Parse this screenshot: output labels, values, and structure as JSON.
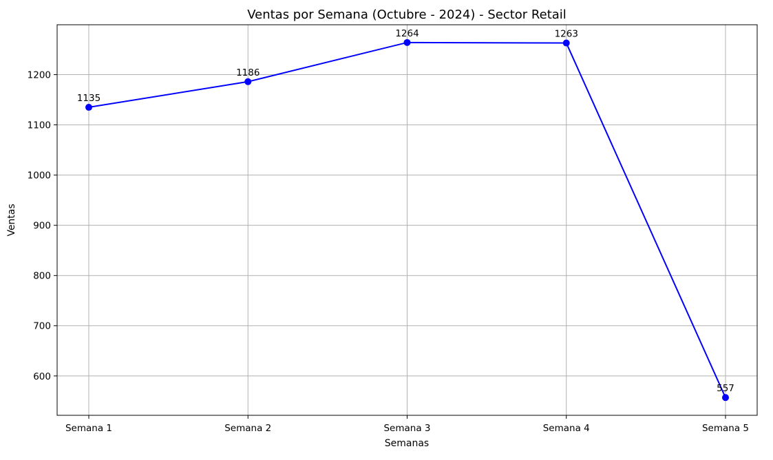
{
  "chart_data": {
    "type": "line",
    "title": "Ventas por Semana (Octubre - 2024) - Sector Retail",
    "xlabel": "Semanas",
    "ylabel": "Ventas",
    "categories": [
      "Semana 1",
      "Semana 2",
      "Semana 3",
      "Semana 4",
      "Semana 5"
    ],
    "series": [
      {
        "values": [
          1135,
          1186,
          1264,
          1263,
          557
        ],
        "color": "#0000ff"
      }
    ],
    "data_labels": [
      "1135",
      "1186",
      "1264",
      "1263",
      "557"
    ],
    "yticks": [
      600,
      700,
      800,
      900,
      1000,
      1100,
      1200
    ],
    "ylim": [
      521.65,
      1299.35
    ],
    "grid": true,
    "legend": "none"
  }
}
